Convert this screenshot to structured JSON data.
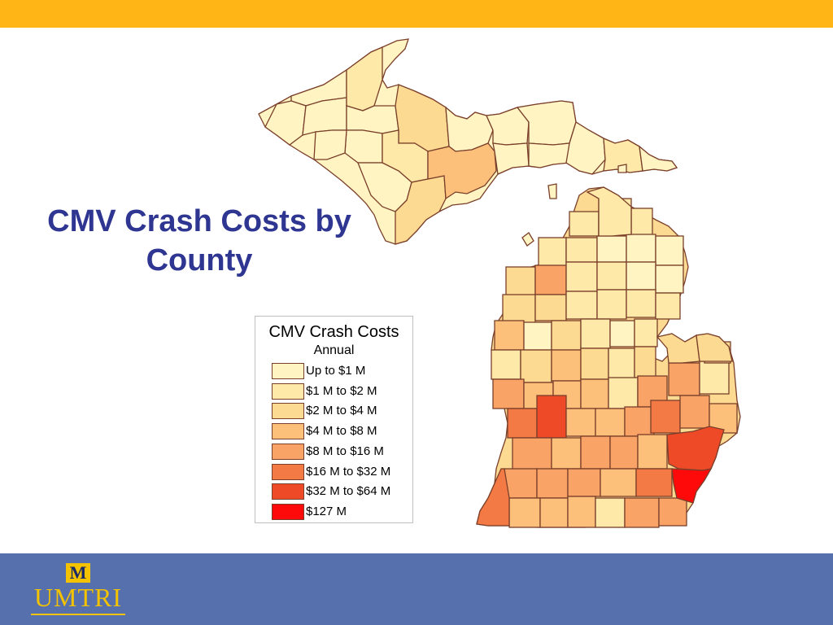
{
  "colors": {
    "top_bar": "#ffb516",
    "bottom_bar": "#5670ae",
    "title": "#2e3692",
    "county_border": "#7a3f2a",
    "logo_gold": "#f3c200"
  },
  "slide": {
    "title_line1": "CMV Crash Costs by",
    "title_line2": "County"
  },
  "legend": {
    "title": "CMV Crash Costs",
    "subtitle": "Annual",
    "classes": [
      {
        "label": "Up to $1 M",
        "color": "#fff4c2"
      },
      {
        "label": "$1 M to $2 M",
        "color": "#ffe9a8"
      },
      {
        "label": "$2 M to $4 M",
        "color": "#fdda92"
      },
      {
        "label": "$4 M to $8 M",
        "color": "#fcc07a"
      },
      {
        "label": "$8 M to $16 M",
        "color": "#f9a466"
      },
      {
        "label": "$16 M to $32 M",
        "color": "#f47a45"
      },
      {
        "label": "$32 M to $64 M",
        "color": "#ee4a28"
      },
      {
        "label": "$127 M",
        "color": "#ff0a0a"
      }
    ]
  },
  "logo": {
    "letter": "M",
    "text": "UMTRI",
    "icon": "block-m-logo-icon"
  }
}
